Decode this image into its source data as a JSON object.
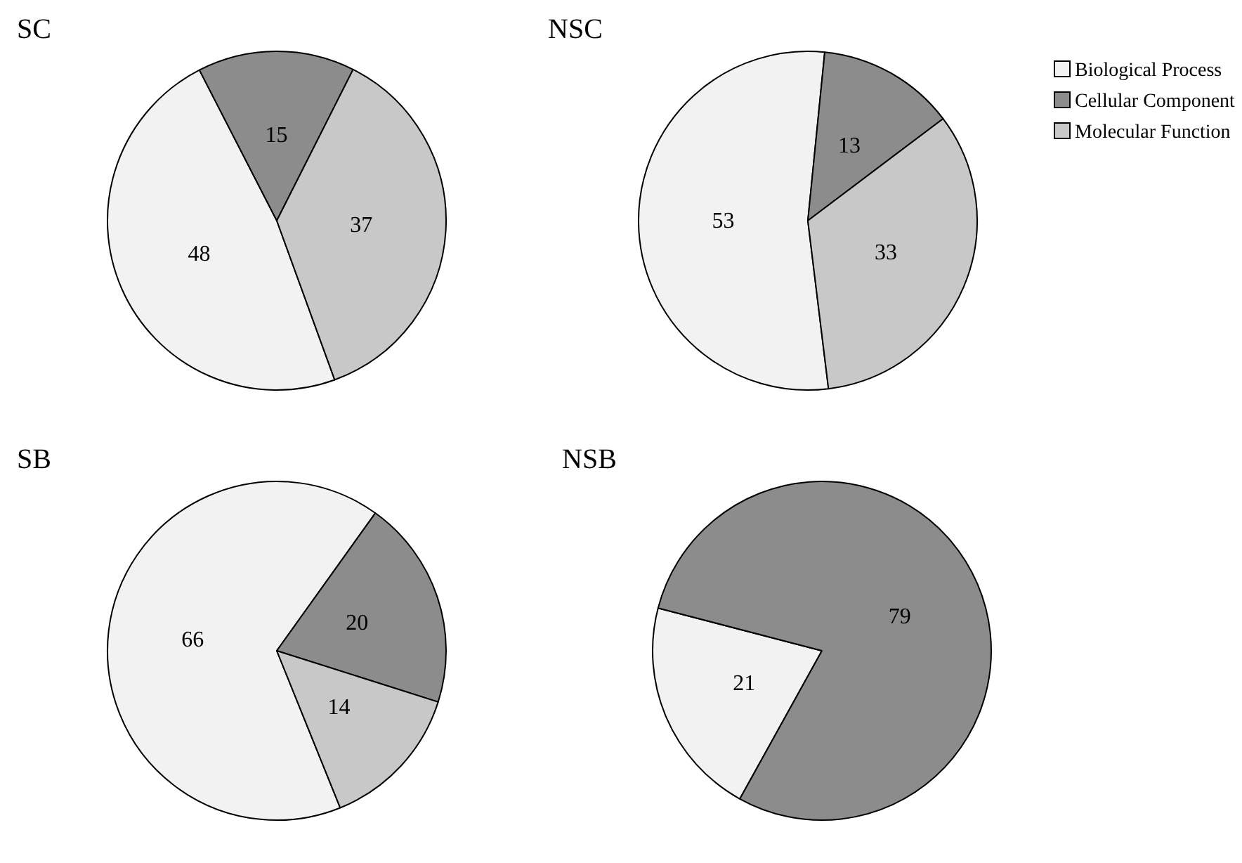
{
  "chart_data": [
    {
      "type": "pie",
      "title": "SC",
      "categories": [
        null,
        null,
        null
      ],
      "values": [
        48,
        15,
        37
      ],
      "colors": [
        "#f2f2f2",
        "#8c8c8c",
        "#c8c8c8"
      ],
      "data_labels": true,
      "legend": false
    },
    {
      "type": "pie",
      "title": "NSC",
      "categories": [
        "Biological Process",
        "Cellular Component",
        "Molecular Function"
      ],
      "values": [
        53,
        13,
        33
      ],
      "colors": [
        "#f2f2f2",
        "#8c8c8c",
        "#c8c8c8"
      ],
      "data_labels": true,
      "legend": "right"
    },
    {
      "type": "pie",
      "title": "SB",
      "categories": [
        null,
        null,
        null
      ],
      "values": [
        66,
        20,
        14
      ],
      "colors": [
        "#f2f2f2",
        "#8c8c8c",
        "#c8c8c8"
      ],
      "data_labels": true,
      "legend": false
    },
    {
      "type": "pie",
      "title": "NSB",
      "categories": [
        null,
        null
      ],
      "values": [
        21,
        79
      ],
      "colors": [
        "#f2f2f2",
        "#8c8c8c"
      ],
      "data_labels": true,
      "legend": false
    }
  ]
}
